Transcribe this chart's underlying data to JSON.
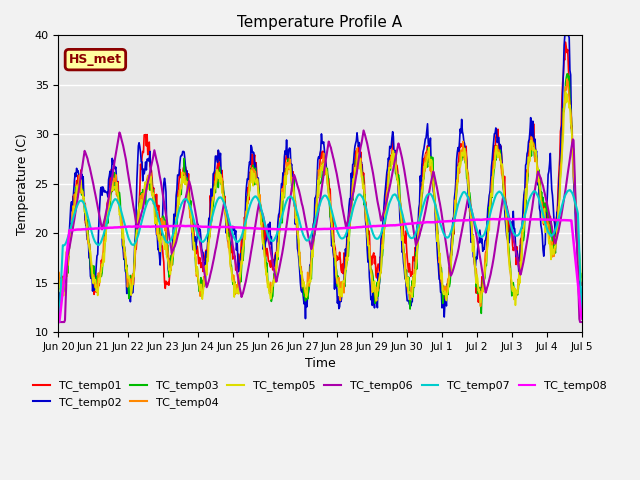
{
  "title": "Temperature Profile A",
  "xlabel": "Time",
  "ylabel": "Temperature (C)",
  "ylim": [
    10,
    40
  ],
  "xlim": [
    0,
    360
  ],
  "annotation": "HS_met",
  "annotation_facecolor": "#FFFFA0",
  "annotation_edgecolor": "#8B0000",
  "annotation_textcolor": "#8B0000",
  "background_color": "#E8E8E8",
  "fig_facecolor": "#F2F2F2",
  "series": {
    "TC_temp01": {
      "color": "#FF0000",
      "lw": 1.2
    },
    "TC_temp02": {
      "color": "#0000CC",
      "lw": 1.2
    },
    "TC_temp03": {
      "color": "#00BB00",
      "lw": 1.2
    },
    "TC_temp04": {
      "color": "#FF8800",
      "lw": 1.2
    },
    "TC_temp05": {
      "color": "#DDDD00",
      "lw": 1.2
    },
    "TC_temp06": {
      "color": "#AA00AA",
      "lw": 1.5
    },
    "TC_temp07": {
      "color": "#00CCCC",
      "lw": 1.5
    },
    "TC_temp08": {
      "color": "#FF00FF",
      "lw": 1.8
    }
  },
  "xtick_labels": [
    "Jun 20",
    "Jun 21",
    "Jun 22",
    "Jun 23",
    "Jun 24",
    "Jun 25",
    "Jun 26",
    "Jun 27",
    "Jun 28",
    "Jun 29",
    "Jun 30",
    "Jul 1",
    "Jul 2",
    "Jul 3",
    "Jul 4",
    "Jul 5"
  ],
  "xtick_positions": [
    0,
    24,
    48,
    72,
    96,
    120,
    144,
    168,
    192,
    216,
    240,
    264,
    288,
    312,
    336,
    360
  ],
  "ytick_positions": [
    10,
    15,
    20,
    25,
    30,
    35,
    40
  ],
  "n_hours": 360,
  "seed": 42
}
